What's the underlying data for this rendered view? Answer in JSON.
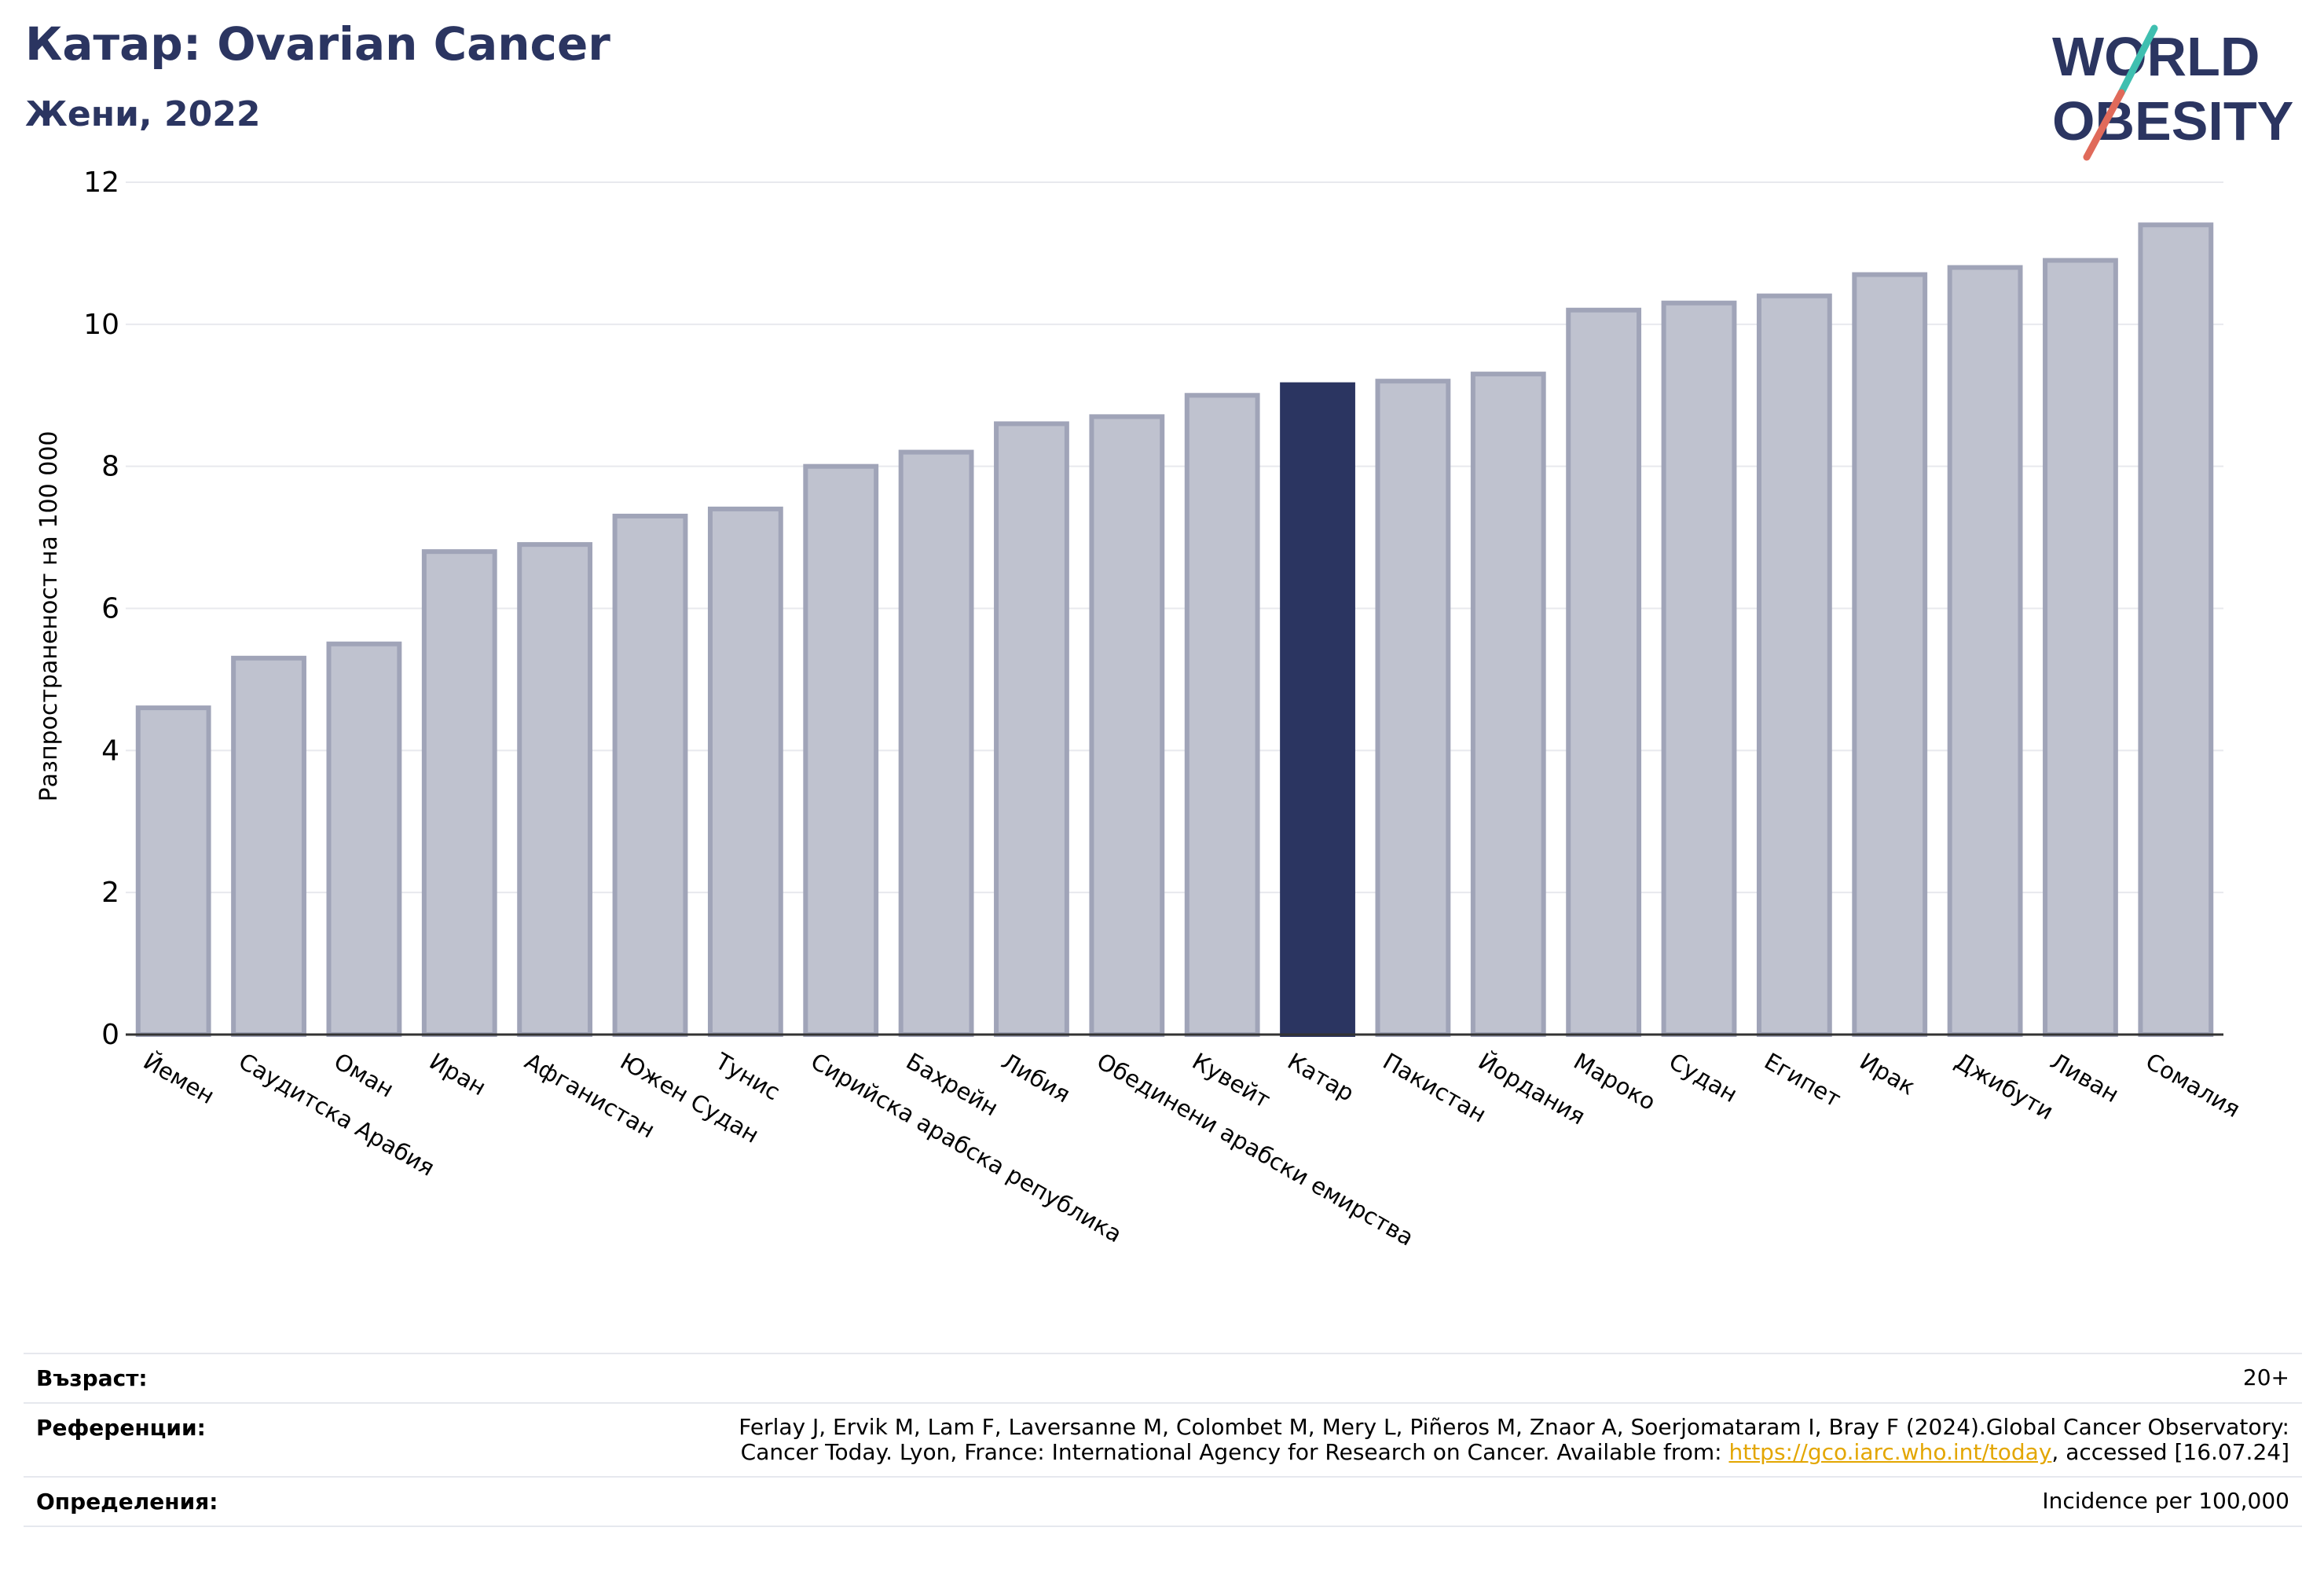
{
  "header": {
    "title": "Катар: Ovarian Cancer",
    "subtitle": "Жени, 2022"
  },
  "logo": {
    "line1": "WORLD",
    "line2": "OBESITY"
  },
  "chart_data": {
    "type": "bar",
    "ylabel": "Разпространеност  на 100 000",
    "ylim": [
      0,
      12
    ],
    "yticks": [
      0,
      2,
      4,
      6,
      8,
      10,
      12
    ],
    "grid": true,
    "highlight": "Катар",
    "colors": {
      "bar": "#bfc2cf",
      "bar_edge": "#a0a4b8",
      "highlight": "#2b3561"
    },
    "categories": [
      "Йемен",
      "Саудитска Арабия",
      "Оман",
      "Иран",
      "Афганистан",
      "Южен Судан",
      "Тунис",
      "Сирийска арабска република",
      "Бахрейн",
      "Либия",
      "Обединени арабски емирства",
      "Кувейт",
      "Катар",
      "Пакистан",
      "Йордания",
      "Мароко",
      "Судан",
      "Египет",
      "Ирак",
      "Джибути",
      "Ливан",
      "Сомалия"
    ],
    "values": [
      4.6,
      5.3,
      5.5,
      6.8,
      6.9,
      7.3,
      7.4,
      8.0,
      8.2,
      8.6,
      8.7,
      9.0,
      9.15,
      9.2,
      9.3,
      10.2,
      10.3,
      10.4,
      10.7,
      10.8,
      10.9,
      11.4
    ]
  },
  "footer": {
    "age_label": "Възраст:",
    "age_value": "20+",
    "ref_label": "Референции:",
    "ref_line1": "Ferlay J, Ervik M, Lam F, Laversanne M, Colombet M, Mery L, Piñeros M, Znaor A, Soerjomataram I, Bray F (2024).Global Cancer Observatory:",
    "ref_line2_pre": "Cancer Today. Lyon, France: International Agency for Research on Cancer. Available from: ",
    "ref_link": "https://gco.iarc.who.int/today",
    "ref_line2_post": ", accessed [16.07.24]",
    "def_label": "Определения:",
    "def_value": "Incidence per 100,000"
  }
}
